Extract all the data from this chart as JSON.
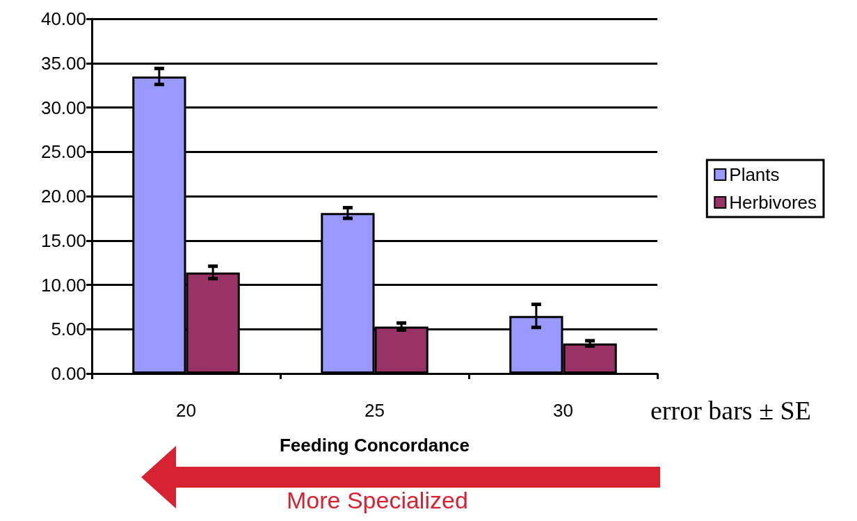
{
  "chart_data": {
    "type": "bar",
    "xlabel": "Feeding Concordance",
    "categories": [
      "20",
      "25",
      "30"
    ],
    "series": [
      {
        "name": "Plants",
        "color": "#9999ff",
        "values": [
          33.5,
          18.1,
          6.5
        ],
        "errors": [
          0.9,
          0.6,
          1.3
        ]
      },
      {
        "name": "Herbivores",
        "color": "#993366",
        "values": [
          11.4,
          5.3,
          3.4
        ],
        "errors": [
          0.7,
          0.4,
          0.3
        ]
      }
    ],
    "ylim": [
      0,
      40
    ],
    "yticks": [
      {
        "value": 0,
        "label": "0.00"
      },
      {
        "value": 5,
        "label": "5.00"
      },
      {
        "value": 10,
        "label": "10.00"
      },
      {
        "value": 15,
        "label": "15.00"
      },
      {
        "value": 20,
        "label": "20.00"
      },
      {
        "value": 25,
        "label": "25.00"
      },
      {
        "value": 30,
        "label": "30.00"
      },
      {
        "value": 35,
        "label": "35.00"
      },
      {
        "value": 40,
        "label": "40.00"
      }
    ],
    "grid": "y",
    "legend": "right",
    "annotations": [
      "error bars ± SE",
      "More Specialized"
    ]
  }
}
